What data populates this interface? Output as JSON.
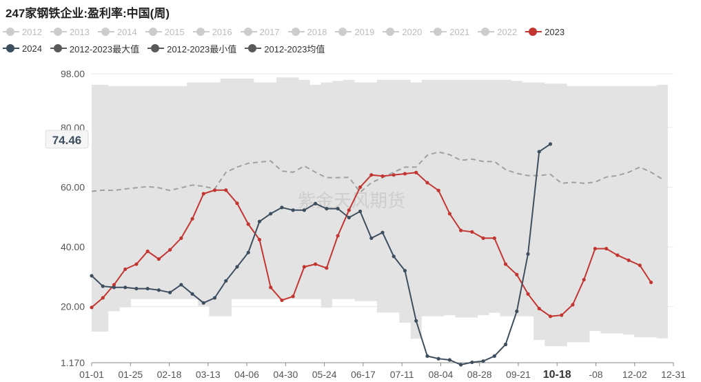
{
  "title": "247家钢铁企业:盈利率:中国(周)",
  "watermark": "紫金天风期货",
  "colors": {
    "inactive": "#cccccc",
    "series_2023": "#c23531",
    "series_2024": "#3d4e5f",
    "series_max": "#5a5a5a",
    "series_min": "#5a5a5a",
    "series_mean": "#5a5a5a",
    "band": "#e3e3e3",
    "mean_line": "#a0a0a0"
  },
  "legend_rows": [
    [
      {
        "name": "2012",
        "state": "inactive"
      },
      {
        "name": "2013",
        "state": "inactive"
      },
      {
        "name": "2014",
        "state": "inactive"
      },
      {
        "name": "2015",
        "state": "inactive"
      },
      {
        "name": "2016",
        "state": "inactive"
      },
      {
        "name": "2017",
        "state": "inactive"
      },
      {
        "name": "2018",
        "state": "inactive"
      },
      {
        "name": "2019",
        "state": "inactive"
      },
      {
        "name": "2020",
        "state": "inactive"
      },
      {
        "name": "2021",
        "state": "inactive"
      },
      {
        "name": "2022",
        "state": "inactive"
      },
      {
        "name": "2023",
        "state": "series_2023"
      }
    ],
    [
      {
        "name": "2024",
        "state": "series_2024"
      },
      {
        "name": "2012-2023最大值",
        "state": "series_max"
      },
      {
        "name": "2012-2023最小值",
        "state": "series_min"
      },
      {
        "name": "2012-2023均值",
        "state": "series_mean"
      }
    ]
  ],
  "chart_data": {
    "type": "line",
    "x_tick_labels": [
      "01-01",
      "01-25",
      "02-18",
      "03-13",
      "04-06",
      "04-30",
      "05-24",
      "06-17",
      "07-11",
      "08-04",
      "08-28",
      "09-21",
      "10-18",
      "-08",
      "12-02",
      "12-31"
    ],
    "highlighted_tick": "10-18",
    "y_tick_labels": [
      "1.170",
      "20.00",
      "40.00",
      "60.00",
      "80.00",
      "98.00"
    ],
    "ylim": [
      1.17,
      98
    ],
    "y_ticks": [
      1.17,
      20,
      40,
      60,
      80,
      98
    ],
    "tooltip_value": "74.46",
    "weeks": 53,
    "series": [
      {
        "name": "2023",
        "values": [
          19.7,
          22.9,
          27.3,
          32.5,
          34.2,
          38.5,
          35.9,
          39.0,
          42.9,
          49.4,
          57.8,
          59.0,
          59.0,
          54.6,
          47.6,
          42.4,
          26.4,
          22.1,
          23.4,
          33.3,
          34.2,
          32.9,
          43.7,
          52.3,
          60.0,
          64.1,
          63.7,
          64.1,
          64.5,
          64.9,
          61.5,
          58.9,
          51.1,
          45.5,
          45.0,
          42.9,
          42.9,
          34.2,
          30.7,
          24.2,
          19.3,
          16.7,
          17.1,
          20.6,
          29.0,
          39.4,
          39.4,
          37.2,
          35.5,
          33.8,
          28.1
        ]
      },
      {
        "name": "2024",
        "values": [
          30.3,
          26.8,
          26.4,
          26.4,
          26.0,
          26.0,
          25.5,
          24.7,
          27.3,
          24.2,
          21.2,
          22.9,
          28.6,
          33.3,
          38.1,
          48.5,
          51.1,
          53.2,
          52.3,
          52.3,
          54.5,
          52.8,
          52.8,
          49.8,
          51.9,
          42.9,
          44.8,
          36.8,
          32.0,
          15.2,
          3.4,
          2.5,
          2.1,
          -0.6,
          1.3,
          1.7,
          3.4,
          7.3,
          18.4,
          37.6,
          71.9,
          74.46
        ]
      },
      {
        "name": "2012-2023最大值",
        "values": [
          94.3,
          94.3,
          93.9,
          93.9,
          93.9,
          93.9,
          93.9,
          93.9,
          93.9,
          95.1,
          95.1,
          95.1,
          96.4,
          96.4,
          96.4,
          95.1,
          95.1,
          96.8,
          96.8,
          96.0,
          94.3,
          95.1,
          95.6,
          96.0,
          95.1,
          95.1,
          96.0,
          96.0,
          96.0,
          95.1,
          96.0,
          96.0,
          96.0,
          96.0,
          96.0,
          96.0,
          96.0,
          96.0,
          95.6,
          95.1,
          95.1,
          94.7,
          94.7,
          93.9,
          93.9,
          93.9,
          93.9,
          93.9,
          93.9,
          93.9,
          93.9,
          94.3
        ]
      },
      {
        "name": "2012-2023最小值",
        "values": [
          11.6,
          11.6,
          18.4,
          19.7,
          22.5,
          22.5,
          22.5,
          22.5,
          22.5,
          22.5,
          20.2,
          16.7,
          16.7,
          22.5,
          22.5,
          22.5,
          22.5,
          22.5,
          22.5,
          22.5,
          22.5,
          19.6,
          22.5,
          22.5,
          21.8,
          21.8,
          18.0,
          18.0,
          14.6,
          9.2,
          16.7,
          16.7,
          17.1,
          16.3,
          16.3,
          17.1,
          17.9,
          16.7,
          16.7,
          16.7,
          8.8,
          6.7,
          6.7,
          8.0,
          8.0,
          11.8,
          11.0,
          11.0,
          10.6,
          9.7,
          9.7,
          9.3
        ]
      },
      {
        "name": "2012-2023均值",
        "values": [
          58.6,
          59.0,
          58.9,
          59.4,
          59.8,
          60.2,
          59.8,
          58.9,
          59.8,
          60.7,
          60.3,
          59.4,
          65.0,
          66.7,
          68.0,
          68.4,
          68.8,
          65.4,
          65.0,
          67.1,
          65.0,
          63.2,
          63.2,
          63.3,
          58.3,
          61.5,
          63.2,
          65.0,
          66.7,
          66.7,
          70.7,
          71.8,
          70.9,
          69.0,
          69.4,
          68.6,
          68.6,
          65.9,
          64.6,
          63.9,
          63.9,
          64.3,
          61.3,
          61.6,
          61.3,
          61.7,
          63.4,
          63.9,
          65.0,
          66.7,
          65.0,
          62.7
        ]
      }
    ]
  }
}
